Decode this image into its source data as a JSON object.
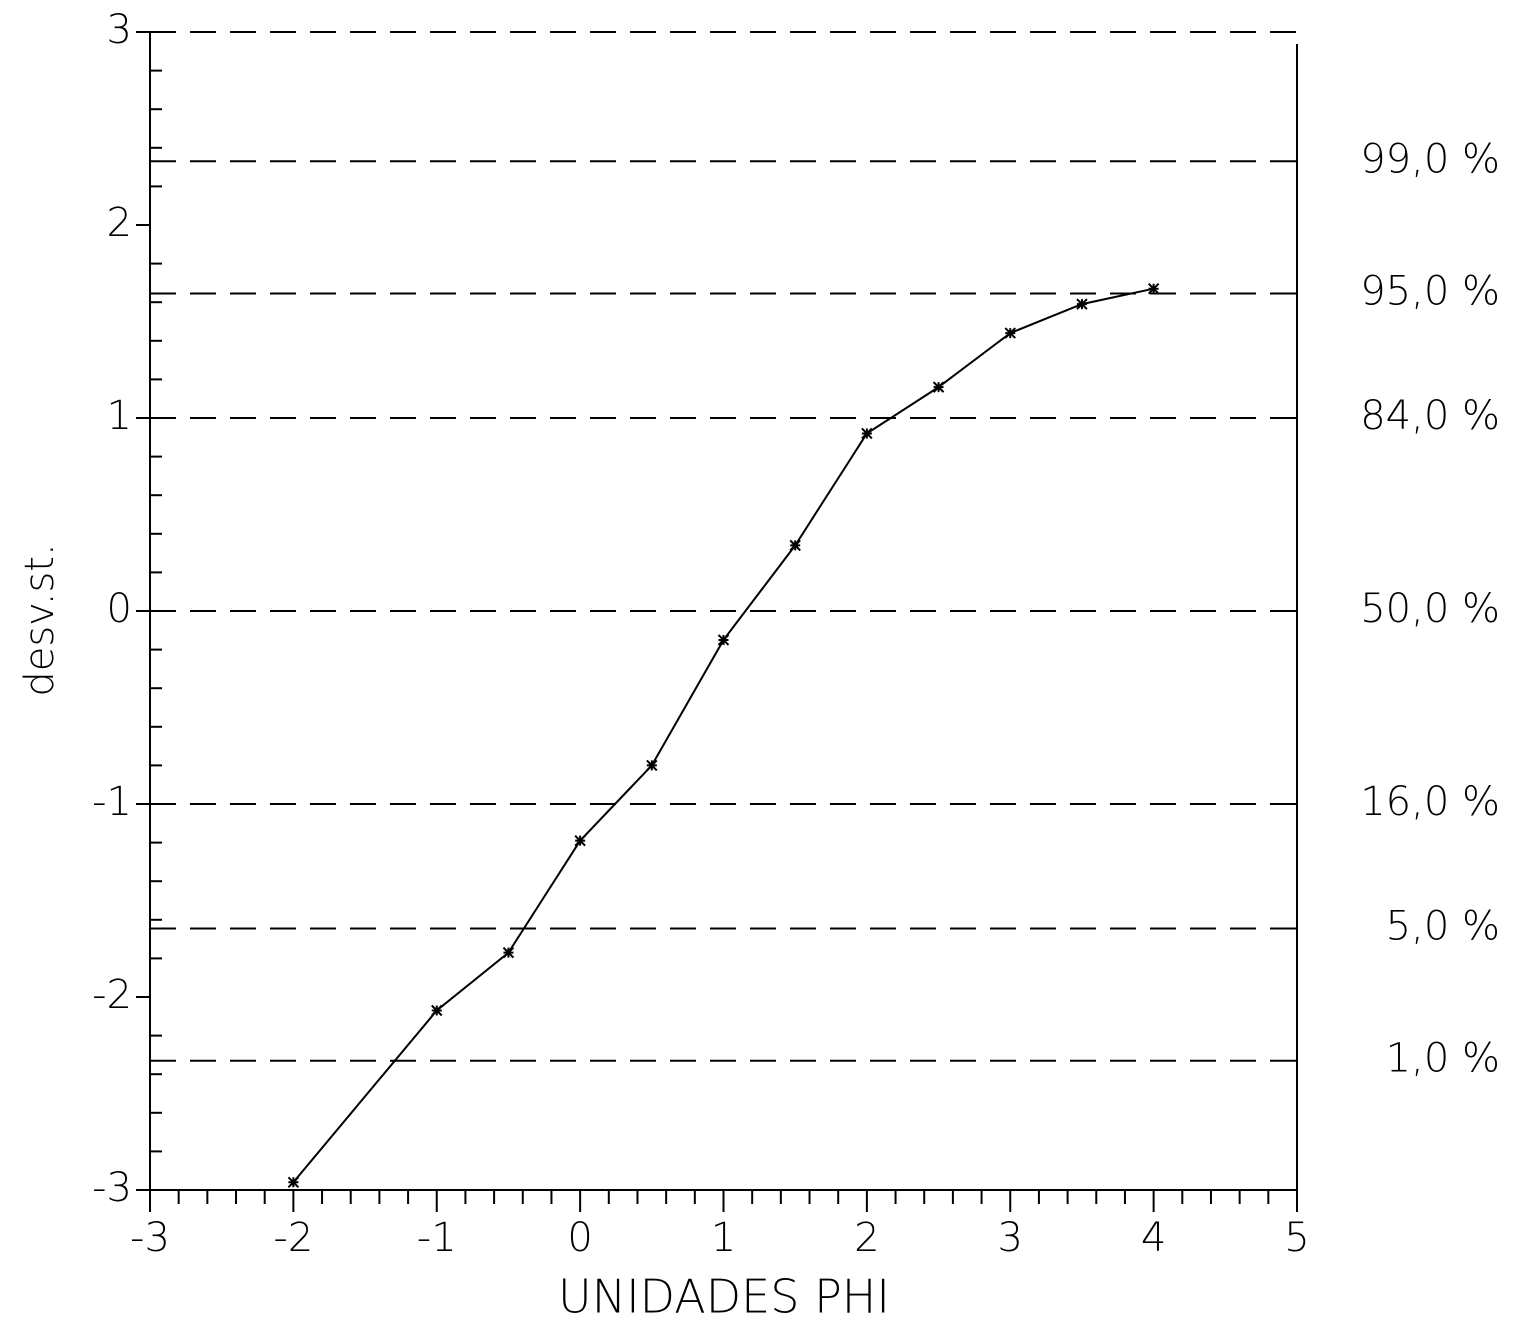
{
  "chart_data": {
    "type": "line",
    "x_label": "UNIDADES PHI",
    "y_label": "desv.st.",
    "x": [
      -2,
      -1,
      -0.5,
      0,
      0.5,
      1,
      1.5,
      2,
      2.5,
      3,
      3.5,
      4
    ],
    "series": [
      {
        "color": "#000000",
        "values": [
          -2.96,
          -2.07,
          -1.77,
          -1.19,
          -0.8,
          -0.15,
          0.34,
          0.92,
          1.16,
          1.44,
          1.59,
          1.67
        ]
      }
    ],
    "xlim": [
      -3,
      5
    ],
    "ylim": [
      -3,
      3
    ],
    "xticks": [
      -3,
      -2,
      -1,
      0,
      1,
      2,
      3,
      4,
      5
    ],
    "yticks": [
      -3,
      -2,
      -1,
      0,
      1,
      2,
      3
    ],
    "xminorticks": [
      -2.8,
      -2.6,
      -2.4,
      -2.2,
      -1.8,
      -1.6,
      -1.4,
      -1.2,
      -0.8,
      -0.6,
      -0.4,
      -0.2,
      0.2,
      0.4,
      0.6,
      0.8,
      1.2,
      1.4,
      1.6,
      1.8,
      2.2,
      2.4,
      2.6,
      2.8,
      3.2,
      3.4,
      3.6,
      3.8,
      4.2,
      4.4,
      4.6,
      4.8
    ],
    "yminorticks": [
      -2.8,
      -2.6,
      -2.4,
      -2.2,
      -1.8,
      -1.6,
      -1.4,
      -1.2,
      -0.8,
      -0.6,
      -0.4,
      -0.2,
      0.2,
      0.4,
      0.6,
      0.8,
      1.2,
      1.4,
      1.6,
      1.8,
      2.2,
      2.4,
      2.6,
      2.8
    ],
    "reference_lines": [
      {
        "value": 3
      },
      {
        "value": 2.33,
        "label": "99,0 %"
      },
      {
        "value": 1.645,
        "label": "95,0 %"
      },
      {
        "value": 1,
        "label": "84,0 %"
      },
      {
        "value": 0,
        "label": "50,0 %"
      },
      {
        "value": -1,
        "label": "16,0 %"
      },
      {
        "value": -1.645,
        "label": "5,0 %"
      },
      {
        "value": -2.33,
        "label": "1,0 %"
      }
    ]
  }
}
